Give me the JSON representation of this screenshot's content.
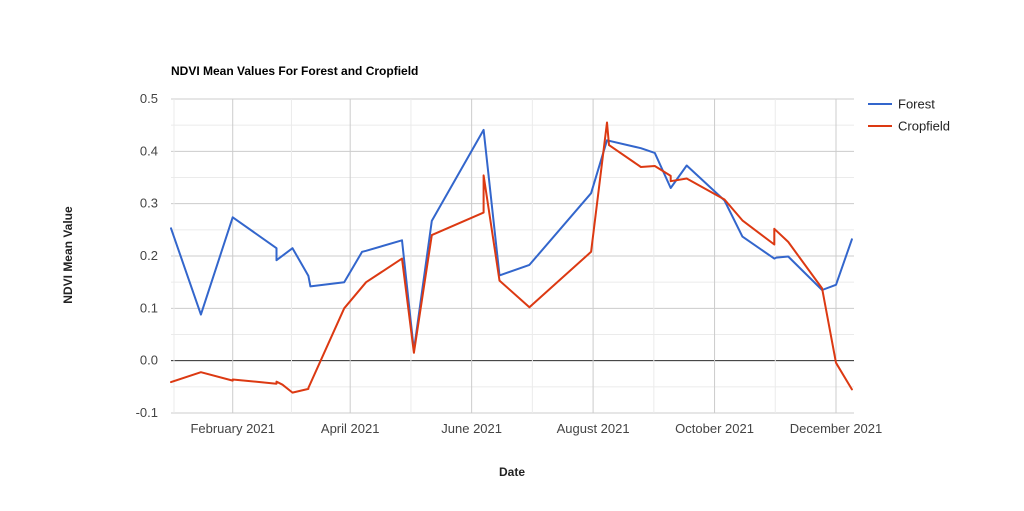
{
  "chart_data": {
    "type": "line",
    "title": "NDVI Mean Values For Forest and Cropfield",
    "xlabel": "Date",
    "ylabel": "NDVI Mean Value",
    "ylim": [
      -0.1,
      0.5
    ],
    "yticks": [
      "0.5",
      "0.4",
      "0.3",
      "0.2",
      "0.1",
      "0.0",
      "-0.1"
    ],
    "xlim": [
      "2021-01-01",
      "2021-12-01"
    ],
    "xticks": [
      {
        "date": "2021-02-01",
        "label": "February 2021"
      },
      {
        "date": "2021-04-01",
        "label": "April 2021"
      },
      {
        "date": "2021-06-01",
        "label": "June 2021"
      },
      {
        "date": "2021-08-01",
        "label": "August 2021"
      },
      {
        "date": "2021-10-01",
        "label": "October 2021"
      },
      {
        "date": "2021-12-01",
        "label": "December 2021"
      }
    ],
    "grid": true,
    "legend_position": "right",
    "series": [
      {
        "name": "Forest",
        "color": "#3366cc",
        "points": [
          {
            "x": "2021-01-01",
            "y": 0.253
          },
          {
            "x": "2021-01-16",
            "y": 0.088
          },
          {
            "x": "2021-02-01",
            "y": 0.274
          },
          {
            "x": "2021-02-23",
            "y": 0.215
          },
          {
            "x": "2021-02-23",
            "y": 0.192
          },
          {
            "x": "2021-03-03",
            "y": 0.215
          },
          {
            "x": "2021-03-11",
            "y": 0.162
          },
          {
            "x": "2021-03-12",
            "y": 0.142
          },
          {
            "x": "2021-03-29",
            "y": 0.15
          },
          {
            "x": "2021-04-07",
            "y": 0.208
          },
          {
            "x": "2021-04-09",
            "y": 0.21
          },
          {
            "x": "2021-04-27",
            "y": 0.23
          },
          {
            "x": "2021-05-03",
            "y": 0.02
          },
          {
            "x": "2021-05-12",
            "y": 0.267
          },
          {
            "x": "2021-06-07",
            "y": 0.441
          },
          {
            "x": "2021-06-15",
            "y": 0.163
          },
          {
            "x": "2021-06-30",
            "y": 0.183
          },
          {
            "x": "2021-07-31",
            "y": 0.32
          },
          {
            "x": "2021-08-08",
            "y": 0.421
          },
          {
            "x": "2021-08-25",
            "y": 0.406
          },
          {
            "x": "2021-09-01",
            "y": 0.397
          },
          {
            "x": "2021-09-09",
            "y": 0.33
          },
          {
            "x": "2021-09-17",
            "y": 0.373
          },
          {
            "x": "2021-10-06",
            "y": 0.306
          },
          {
            "x": "2021-10-15",
            "y": 0.237
          },
          {
            "x": "2021-10-31",
            "y": 0.195
          },
          {
            "x": "2021-11-01",
            "y": 0.197
          },
          {
            "x": "2021-11-07",
            "y": 0.199
          },
          {
            "x": "2021-11-24",
            "y": 0.135
          },
          {
            "x": "2021-12-01",
            "y": 0.145
          },
          {
            "x": "2021-12-09",
            "y": 0.232
          }
        ]
      },
      {
        "name": "Cropfield",
        "color": "#dc3912",
        "points": [
          {
            "x": "2021-01-01",
            "y": -0.041
          },
          {
            "x": "2021-01-16",
            "y": -0.022
          },
          {
            "x": "2021-02-01",
            "y": -0.038
          },
          {
            "x": "2021-02-01",
            "y": -0.036
          },
          {
            "x": "2021-02-23",
            "y": -0.044
          },
          {
            "x": "2021-02-23",
            "y": -0.04
          },
          {
            "x": "2021-02-26",
            "y": -0.046
          },
          {
            "x": "2021-03-03",
            "y": -0.061
          },
          {
            "x": "2021-03-11",
            "y": -0.054
          },
          {
            "x": "2021-03-11",
            "y": -0.052
          },
          {
            "x": "2021-03-29",
            "y": 0.1
          },
          {
            "x": "2021-04-09",
            "y": 0.15
          },
          {
            "x": "2021-04-27",
            "y": 0.195
          },
          {
            "x": "2021-05-03",
            "y": 0.015
          },
          {
            "x": "2021-05-12",
            "y": 0.24
          },
          {
            "x": "2021-06-07",
            "y": 0.283
          },
          {
            "x": "2021-06-07",
            "y": 0.354
          },
          {
            "x": "2021-06-15",
            "y": 0.153
          },
          {
            "x": "2021-06-30",
            "y": 0.102
          },
          {
            "x": "2021-07-31",
            "y": 0.208
          },
          {
            "x": "2021-08-08",
            "y": 0.455
          },
          {
            "x": "2021-08-09",
            "y": 0.412
          },
          {
            "x": "2021-08-25",
            "y": 0.37
          },
          {
            "x": "2021-09-01",
            "y": 0.372
          },
          {
            "x": "2021-09-09",
            "y": 0.353
          },
          {
            "x": "2021-09-09",
            "y": 0.343
          },
          {
            "x": "2021-09-17",
            "y": 0.348
          },
          {
            "x": "2021-10-06",
            "y": 0.308
          },
          {
            "x": "2021-10-15",
            "y": 0.268
          },
          {
            "x": "2021-10-31",
            "y": 0.222
          },
          {
            "x": "2021-10-31",
            "y": 0.252
          },
          {
            "x": "2021-11-07",
            "y": 0.227
          },
          {
            "x": "2021-11-24",
            "y": 0.138
          },
          {
            "x": "2021-12-01",
            "y": -0.004
          },
          {
            "x": "2021-12-09",
            "y": -0.055
          }
        ]
      }
    ]
  }
}
